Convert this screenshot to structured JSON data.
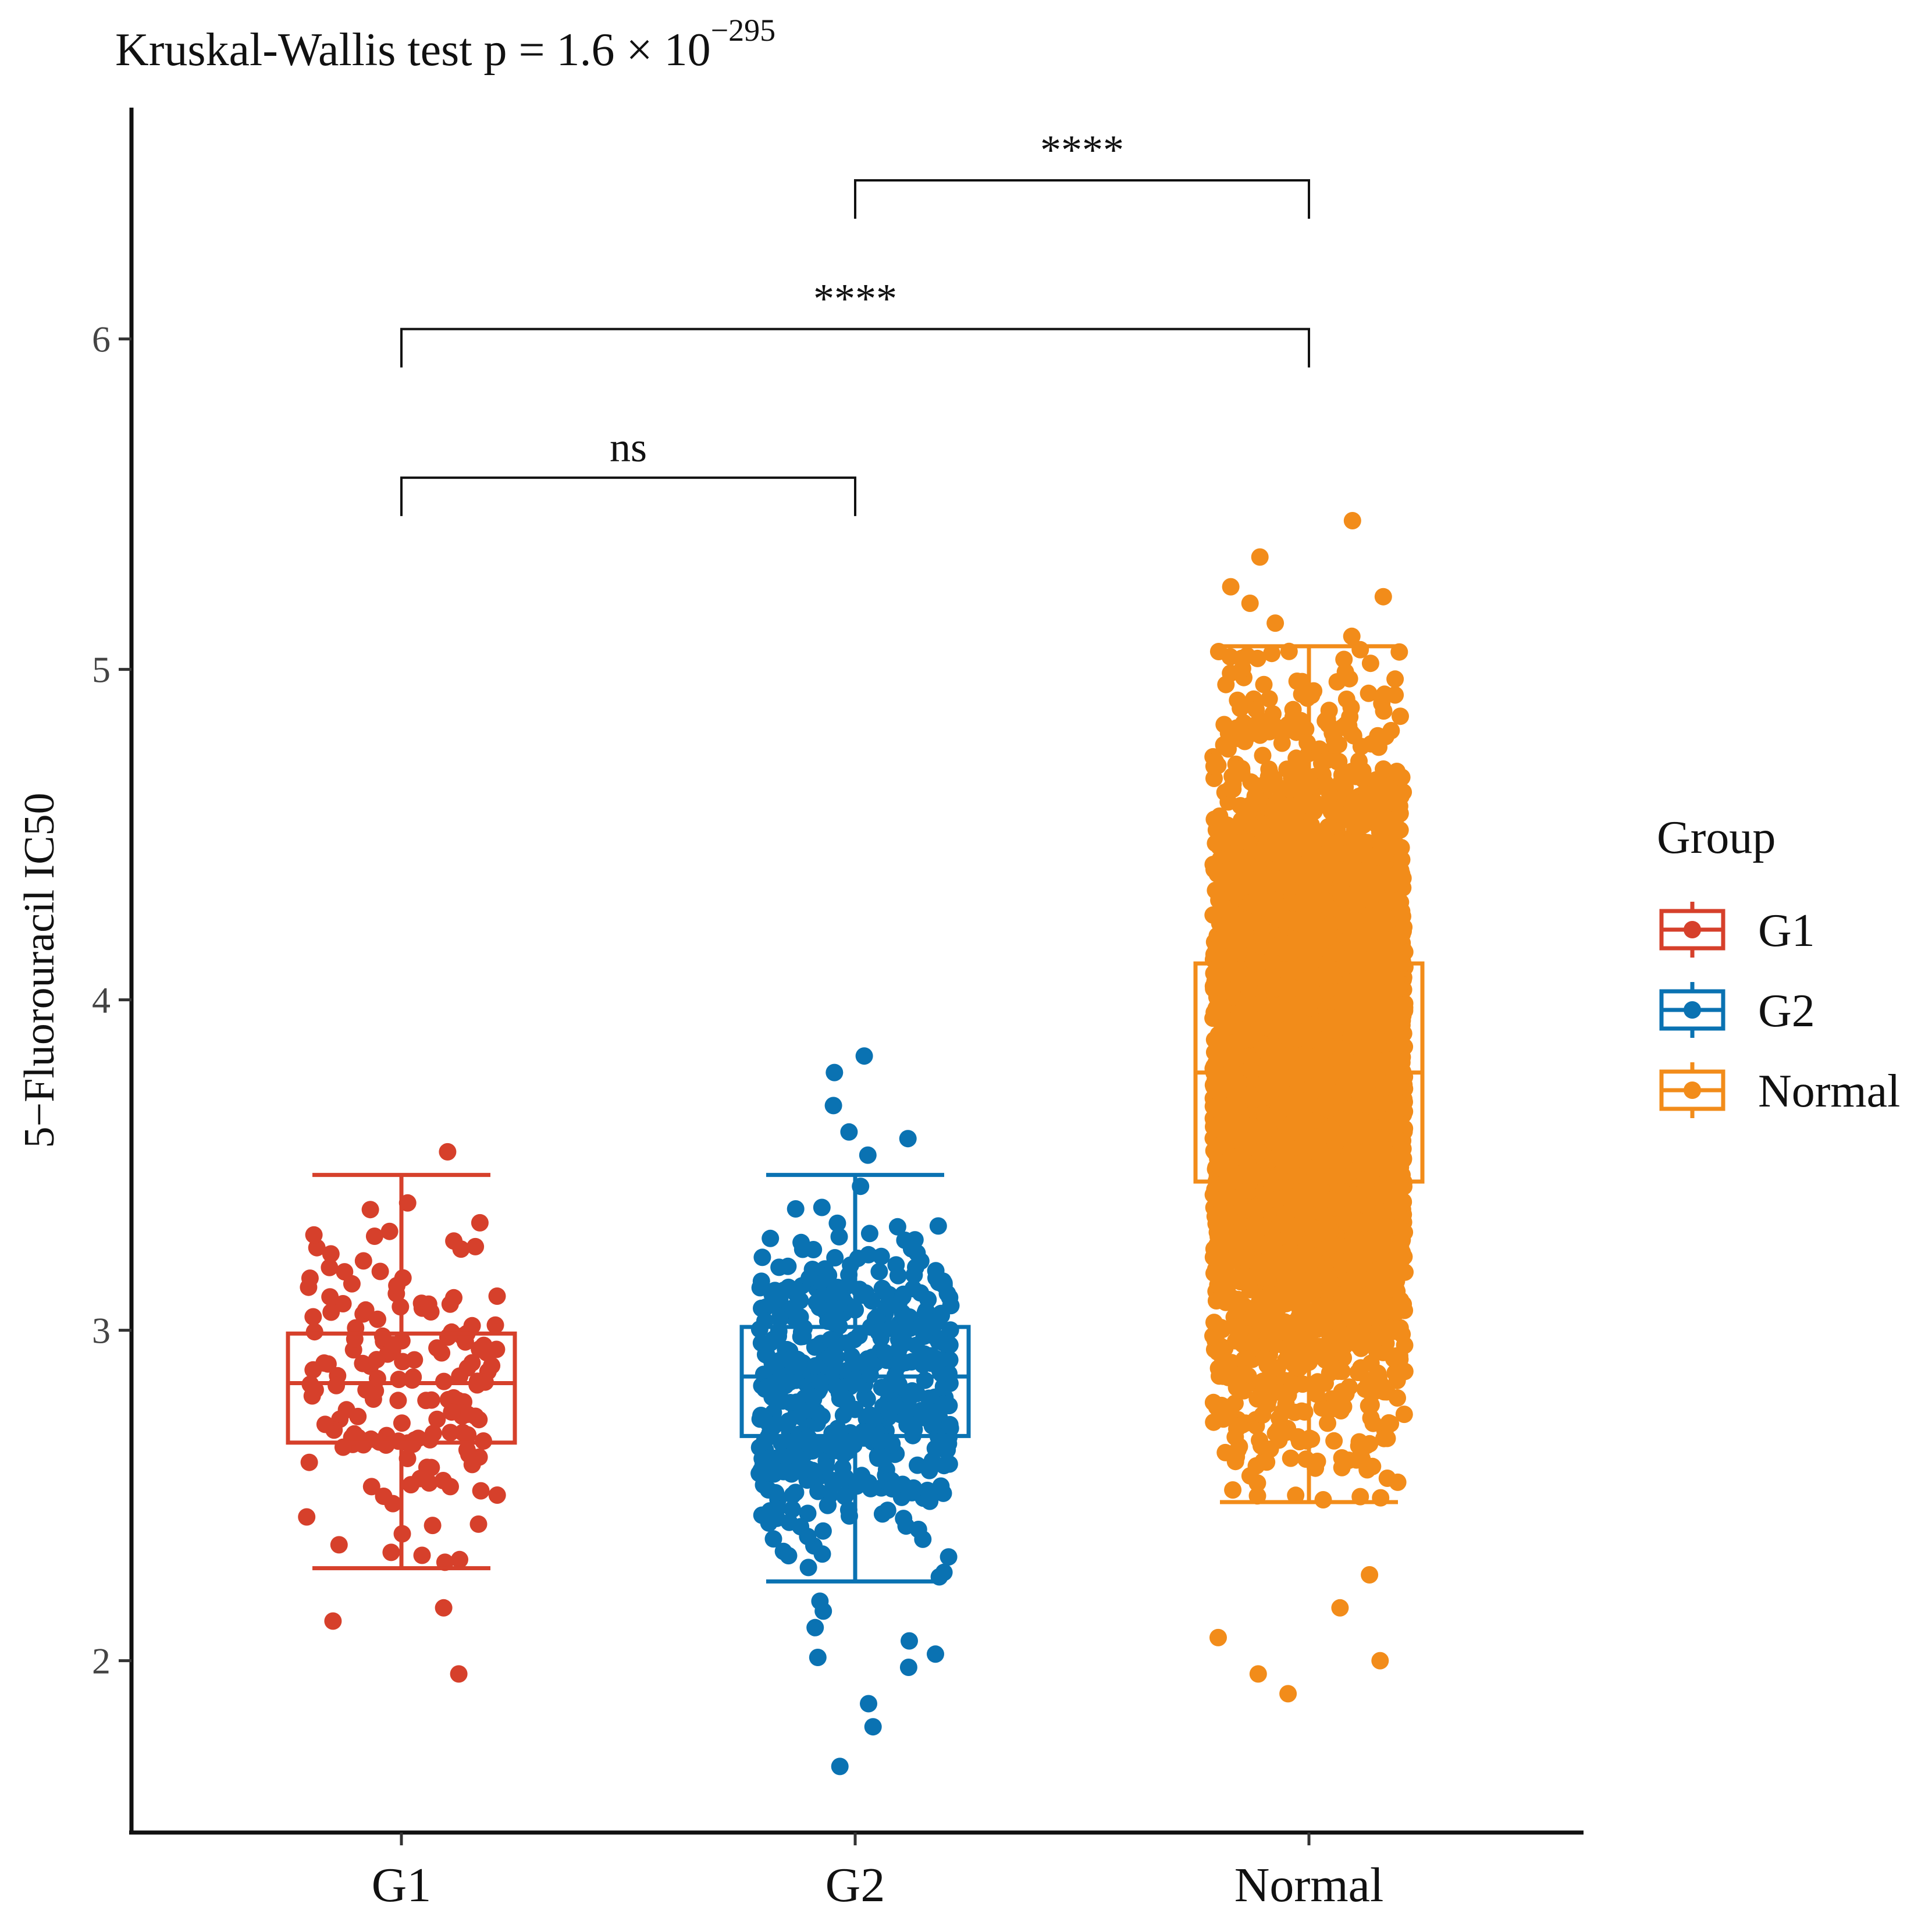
{
  "chart_data": {
    "type": "boxplot-jitter",
    "title": "Kruskal-Wallis test p = 1.6 × 10",
    "title_exponent": "−295",
    "xlabel": "",
    "ylabel": "5−Fluorouracil IC50",
    "ylim": [
      1.48,
      6.7
    ],
    "yticks": [
      "2",
      "3",
      "4",
      "5",
      "6"
    ],
    "categories": [
      "G1",
      "G2",
      "Normal"
    ],
    "legend": {
      "title": "Group",
      "position": "right",
      "entries": [
        "G1",
        "G2",
        "Normal"
      ]
    },
    "series": [
      {
        "name": "G1",
        "color": "#D6402B",
        "n_points": 160,
        "box": {
          "whisker_low": 2.28,
          "q1": 2.66,
          "median": 2.84,
          "q3": 2.99,
          "whisker_high": 3.47
        },
        "outliers": [
          1.96,
          2.12,
          2.16,
          3.54
        ]
      },
      {
        "name": "G2",
        "color": "#0A72B2",
        "n_points": 520,
        "box": {
          "whisker_low": 2.24,
          "q1": 2.68,
          "median": 2.86,
          "q3": 3.01,
          "whisker_high": 3.47
        },
        "outliers": [
          1.68,
          1.8,
          1.87,
          1.98,
          2.01,
          2.02,
          2.06,
          2.1,
          2.15,
          2.18,
          3.53,
          3.58,
          3.6,
          3.68,
          3.78,
          3.83
        ]
      },
      {
        "name": "Normal",
        "color": "#F28C1A",
        "n_points": 4500,
        "box": {
          "whisker_low": 2.48,
          "q1": 3.45,
          "median": 3.78,
          "q3": 4.11,
          "whisker_high": 5.07
        },
        "outliers": [
          1.9,
          1.96,
          2.0,
          2.07,
          2.16,
          2.26,
          5.1,
          5.14,
          5.2,
          5.22,
          5.25,
          5.34,
          5.45
        ]
      }
    ],
    "comparisons": [
      {
        "from": "G1",
        "to": "G2",
        "label": "ns",
        "y": 5.58
      },
      {
        "from": "G1",
        "to": "Normal",
        "label": "****",
        "y": 6.03
      },
      {
        "from": "G2",
        "to": "Normal",
        "label": "****",
        "y": 6.48
      }
    ]
  }
}
